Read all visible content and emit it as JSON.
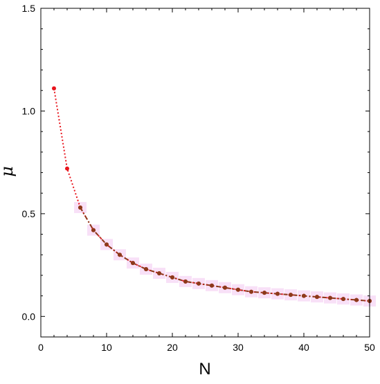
{
  "chart_data": {
    "type": "scatter",
    "xlabel": "N",
    "ylabel": "μ",
    "xlim": [
      0,
      50
    ],
    "ylim": [
      -0.1,
      1.5
    ],
    "x_ticks": [
      0,
      10,
      20,
      30,
      40,
      50
    ],
    "y_ticks": [
      0.0,
      0.5,
      1.0,
      1.5
    ],
    "x_tick_labels": [
      "0",
      "10",
      "20",
      "30",
      "40",
      "50"
    ],
    "y_tick_labels": [
      "0.0",
      "0.5",
      "1.0",
      "1.5"
    ],
    "grid": false,
    "legend": "none",
    "series": [
      {
        "color": "#e8141c",
        "line_style": "dotted",
        "x": [
          2,
          4,
          6,
          8,
          10,
          12,
          14,
          16,
          18,
          20,
          22,
          24,
          26,
          28,
          30,
          32,
          34,
          36,
          38,
          40,
          42,
          44,
          46,
          48,
          50
        ],
        "y": [
          1.11,
          0.72,
          0.53,
          0.42,
          0.35,
          0.3,
          0.26,
          0.23,
          0.21,
          0.19,
          0.17,
          0.16,
          0.15,
          0.14,
          0.13,
          0.12,
          0.115,
          0.11,
          0.105,
          0.1,
          0.095,
          0.09,
          0.085,
          0.08,
          0.075
        ]
      },
      {
        "color": "#8b3a1a",
        "line_style": "dash-dot",
        "x": [
          6,
          8,
          10,
          12,
          14,
          16,
          18,
          20,
          22,
          24,
          26,
          28,
          30,
          32,
          34,
          36,
          38,
          40,
          42,
          44,
          46,
          48,
          50
        ],
        "y": [
          0.53,
          0.42,
          0.35,
          0.3,
          0.26,
          0.23,
          0.21,
          0.19,
          0.17,
          0.16,
          0.15,
          0.14,
          0.13,
          0.12,
          0.115,
          0.11,
          0.105,
          0.1,
          0.095,
          0.09,
          0.085,
          0.08,
          0.075
        ]
      }
    ],
    "error_band_color": "#f3c6f0"
  }
}
